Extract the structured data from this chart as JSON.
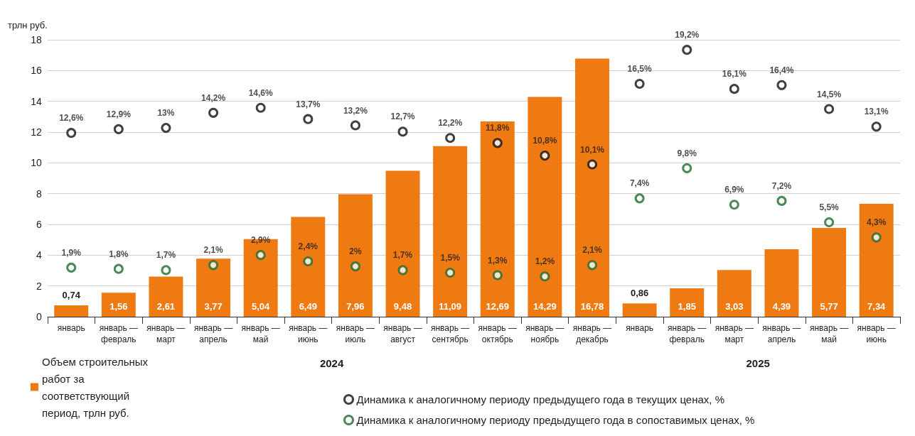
{
  "chart_data": {
    "type": "bar",
    "ylabel": "трлн руб.",
    "categories": [
      "январь",
      "январь — февраль",
      "январь — март",
      "январь — апрель",
      "январь — май",
      "январь — июнь",
      "январь — июль",
      "январь — август",
      "январь — сентябрь",
      "январь — октябрь",
      "январь — ноябрь",
      "январь — декабрь",
      "январь",
      "январь — февраль",
      "январь — март",
      "январь — апрель",
      "январь — май",
      "январь — июнь"
    ],
    "series": [
      {
        "name": "Объем строительных работ за соответствующий период, трлн руб.",
        "color": "#f07a12",
        "values": [
          0.74,
          1.56,
          2.61,
          3.77,
          5.04,
          6.49,
          7.96,
          9.48,
          11.09,
          12.69,
          14.29,
          16.78,
          0.86,
          1.85,
          3.03,
          4.39,
          5.77,
          7.34
        ],
        "value_labels": [
          "0,74",
          "1,56",
          "2,61",
          "3,77",
          "5,04",
          "6,49",
          "7,96",
          "9,48",
          "11,09",
          "12,69",
          "14,29",
          "16,78",
          "0,86",
          "1,85",
          "3,03",
          "4,39",
          "5,77",
          "7,34"
        ]
      },
      {
        "name": "Динамика к аналогичному периоду предыдущего года в текущих ценах, %",
        "type": "scatter",
        "axis": "y2",
        "color": "#111111",
        "values": [
          12.6,
          12.9,
          13,
          14.2,
          14.6,
          13.7,
          13.2,
          12.7,
          12.2,
          11.8,
          10.8,
          10.1,
          16.5,
          19.2,
          16.1,
          16.4,
          14.5,
          13.1
        ],
        "value_labels": [
          "12,6%",
          "12,9%",
          "13%",
          "14,2%",
          "14,6%",
          "13,7%",
          "13,2%",
          "12,7%",
          "12,2%",
          "11,8%",
          "10,8%",
          "10,1%",
          "16,5%",
          "19,2%",
          "16,1%",
          "16,4%",
          "14,5%",
          "13,1%"
        ]
      },
      {
        "name": "Динамика к аналогичному периоду предыдущего года в сопоставимых ценах, %",
        "type": "scatter",
        "axis": "y2",
        "color": "#1e6b2e",
        "values": [
          1.9,
          1.8,
          1.7,
          2.1,
          2.9,
          2.4,
          2,
          1.7,
          1.5,
          1.3,
          1.2,
          2.1,
          7.4,
          9.8,
          6.9,
          7.2,
          5.5,
          4.3
        ],
        "value_labels": [
          "1,9%",
          "1,8%",
          "1,7%",
          "2,1%",
          "2,9%",
          "2,4%",
          "2%",
          "1,7%",
          "1,5%",
          "1,3%",
          "1,2%",
          "2,1%",
          "7,4%",
          "9,8%",
          "6,9%",
          "7,2%",
          "5,5%",
          "4,3%"
        ]
      }
    ],
    "ylim": [
      0,
      18
    ],
    "yticks": [
      0,
      2,
      4,
      6,
      8,
      10,
      12,
      14,
      16,
      18
    ],
    "y2lim": [
      -2,
      20
    ],
    "annotations": [
      "2024",
      "2025"
    ],
    "grid": "y",
    "legend": "bottom",
    "marker": "circle"
  }
}
